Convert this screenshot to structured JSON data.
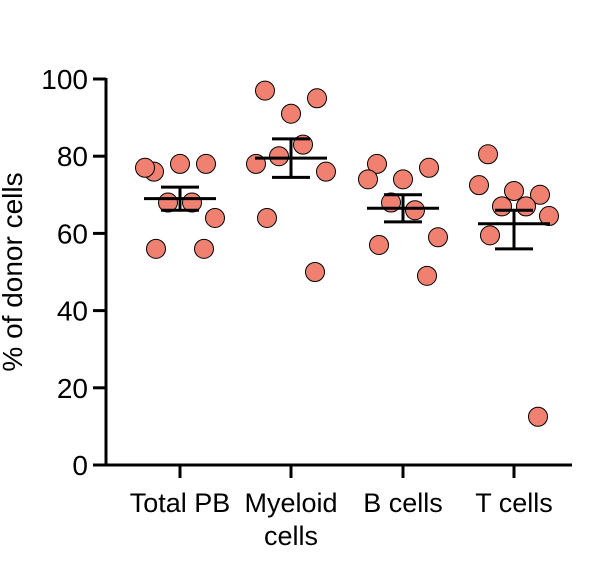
{
  "chart_data": {
    "type": "scatter",
    "title": "",
    "xlabel": "",
    "ylabel": "% of donor cells",
    "ylim": [
      0,
      100
    ],
    "yticks": [
      "0",
      "20",
      "40",
      "60",
      "80",
      "100"
    ],
    "categories": [
      [
        "Total PB"
      ],
      [
        "Myeloid",
        "cells"
      ],
      [
        "B cells"
      ],
      [
        "T cells"
      ]
    ],
    "point_color": "#f08070",
    "point_edge_color": "#000000",
    "series": [
      {
        "category_index": 0,
        "values": [
          76,
          78,
          78,
          77,
          68,
          68,
          64,
          56,
          56
        ],
        "mean": 69,
        "sem_low": 66,
        "sem_high": 72
      },
      {
        "category_index": 1,
        "values": [
          97,
          91,
          95,
          78,
          80,
          83,
          76,
          64,
          50
        ],
        "mean": 79.5,
        "sem_low": 74.5,
        "sem_high": 84.5
      },
      {
        "category_index": 2,
        "values": [
          78,
          74,
          77,
          74,
          68,
          66,
          59,
          57,
          49
        ],
        "mean": 66.5,
        "sem_low": 63,
        "sem_high": 70
      },
      {
        "category_index": 3,
        "values": [
          80.5,
          71,
          70,
          72.5,
          67,
          67,
          64.5,
          59.5,
          12.5
        ],
        "mean": 62.5,
        "sem_low": 56,
        "sem_high": 66
      }
    ]
  }
}
